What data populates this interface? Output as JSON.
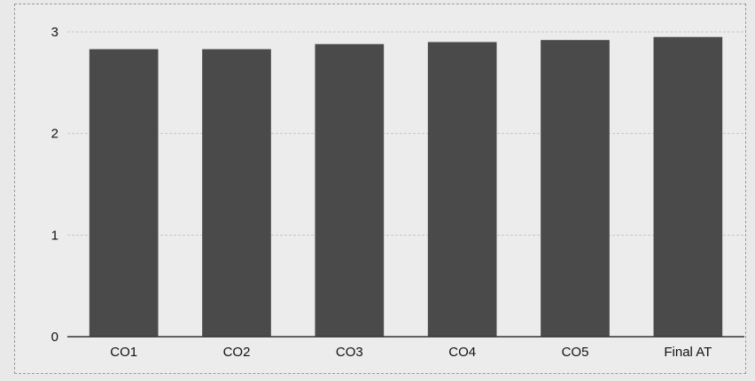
{
  "chart_data": {
    "type": "bar",
    "title": "",
    "xlabel": "",
    "ylabel": "",
    "categories": [
      "CO1",
      "CO2",
      "CO3",
      "CO4",
      "CO5",
      "Final AT"
    ],
    "values": [
      2.83,
      2.83,
      2.88,
      2.9,
      2.92,
      2.95
    ],
    "ylim": [
      0,
      3
    ],
    "yticks": [
      "0",
      "1",
      "2",
      "3"
    ],
    "grid": true,
    "legend": "none",
    "bar_color": "#4a4a4a"
  }
}
